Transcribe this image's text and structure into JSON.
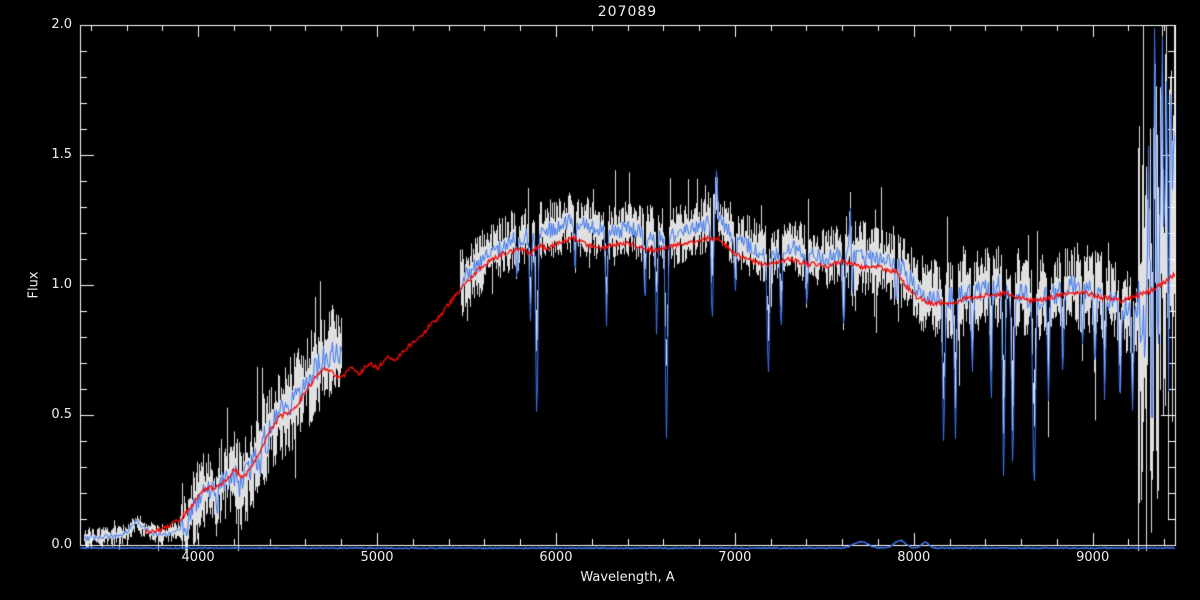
{
  "chart_data": {
    "type": "line",
    "title": "207089",
    "xlabel": "Wavelength, A",
    "ylabel": "Flux",
    "xlim": [
      3340,
      9460
    ],
    "ylim": [
      0.0,
      2.0
    ],
    "grid": false,
    "legend": "none",
    "background": "#000000",
    "axis_color": "#ffffff",
    "text_color": "#efefef",
    "x_ticks": [
      {
        "value": 4000,
        "label": "4000"
      },
      {
        "value": 5000,
        "label": "5000"
      },
      {
        "value": 6000,
        "label": "6000"
      },
      {
        "value": 7000,
        "label": "7000"
      },
      {
        "value": 8000,
        "label": "8000"
      },
      {
        "value": 9000,
        "label": "9000"
      }
    ],
    "y_ticks": [
      {
        "value": 0.0,
        "label": "0.0"
      },
      {
        "value": 0.5,
        "label": "0.5"
      },
      {
        "value": 1.0,
        "label": "1.0"
      },
      {
        "value": 1.5,
        "label": "1.5"
      },
      {
        "value": 2.0,
        "label": "2.0"
      }
    ],
    "series": [
      {
        "name": "observed-spectrum-raw",
        "color": "#ffffff",
        "style": "noisy-band"
      },
      {
        "name": "observed-spectrum-overlay",
        "color": "#3a76f0",
        "style": "noisy-line"
      },
      {
        "name": "model-fit",
        "color": "#f20c0c",
        "style": "smooth-line"
      },
      {
        "name": "zero-baseline",
        "color": "#3a76f0",
        "style": "flat-line"
      }
    ],
    "segments": [
      [
        3360,
        4800
      ],
      [
        5460,
        9460
      ]
    ],
    "continuum": [
      [
        3360,
        0.025
      ],
      [
        3450,
        0.03
      ],
      [
        3550,
        0.035
      ],
      [
        3600,
        0.05
      ],
      [
        3650,
        0.09
      ],
      [
        3700,
        0.06
      ],
      [
        3750,
        0.045
      ],
      [
        3800,
        0.04
      ],
      [
        3850,
        0.05
      ],
      [
        3900,
        0.06
      ],
      [
        3930,
        0.09
      ],
      [
        3960,
        0.13
      ],
      [
        4000,
        0.18
      ],
      [
        4040,
        0.22
      ],
      [
        4080,
        0.21
      ],
      [
        4120,
        0.23
      ],
      [
        4160,
        0.26
      ],
      [
        4200,
        0.27
      ],
      [
        4240,
        0.24
      ],
      [
        4280,
        0.28
      ],
      [
        4320,
        0.33
      ],
      [
        4360,
        0.4
      ],
      [
        4400,
        0.46
      ],
      [
        4440,
        0.5
      ],
      [
        4480,
        0.52
      ],
      [
        4520,
        0.54
      ],
      [
        4560,
        0.57
      ],
      [
        4600,
        0.62
      ],
      [
        4640,
        0.66
      ],
      [
        4680,
        0.7
      ],
      [
        4720,
        0.73
      ],
      [
        4760,
        0.74
      ],
      [
        4800,
        0.72
      ],
      [
        5460,
        1.0
      ],
      [
        5500,
        1.04
      ],
      [
        5550,
        1.07
      ],
      [
        5600,
        1.1
      ],
      [
        5650,
        1.13
      ],
      [
        5700,
        1.15
      ],
      [
        5750,
        1.17
      ],
      [
        5800,
        1.18
      ],
      [
        5850,
        1.19
      ],
      [
        5900,
        1.2
      ],
      [
        5950,
        1.21
      ],
      [
        6000,
        1.22
      ],
      [
        6050,
        1.24
      ],
      [
        6100,
        1.25
      ],
      [
        6150,
        1.23
      ],
      [
        6200,
        1.22
      ],
      [
        6250,
        1.21
      ],
      [
        6300,
        1.2
      ],
      [
        6350,
        1.21
      ],
      [
        6400,
        1.22
      ],
      [
        6450,
        1.21
      ],
      [
        6500,
        1.2
      ],
      [
        6550,
        1.19
      ],
      [
        6600,
        1.18
      ],
      [
        6650,
        1.19
      ],
      [
        6700,
        1.2
      ],
      [
        6750,
        1.21
      ],
      [
        6800,
        1.22
      ],
      [
        6850,
        1.24
      ],
      [
        6900,
        1.26
      ],
      [
        6950,
        1.22
      ],
      [
        7000,
        1.18
      ],
      [
        7050,
        1.16
      ],
      [
        7100,
        1.14
      ],
      [
        7150,
        1.13
      ],
      [
        7200,
        1.12
      ],
      [
        7250,
        1.13
      ],
      [
        7300,
        1.15
      ],
      [
        7350,
        1.13
      ],
      [
        7400,
        1.12
      ],
      [
        7450,
        1.11
      ],
      [
        7500,
        1.1
      ],
      [
        7550,
        1.11
      ],
      [
        7600,
        1.12
      ],
      [
        7650,
        1.11
      ],
      [
        7700,
        1.1
      ],
      [
        7750,
        1.1
      ],
      [
        7800,
        1.1
      ],
      [
        7850,
        1.09
      ],
      [
        7900,
        1.08
      ],
      [
        7950,
        1.05
      ],
      [
        8000,
        1.0
      ],
      [
        8050,
        0.97
      ],
      [
        8100,
        0.95
      ],
      [
        8150,
        0.95
      ],
      [
        8200,
        0.95
      ],
      [
        8250,
        0.96
      ],
      [
        8300,
        0.97
      ],
      [
        8350,
        0.98
      ],
      [
        8400,
        0.98
      ],
      [
        8450,
        0.99
      ],
      [
        8500,
        1.0
      ],
      [
        8550,
        0.98
      ],
      [
        8600,
        0.97
      ],
      [
        8650,
        0.95
      ],
      [
        8700,
        0.95
      ],
      [
        8750,
        0.96
      ],
      [
        8800,
        0.97
      ],
      [
        8850,
        0.99
      ],
      [
        8900,
        1.0
      ],
      [
        8950,
        0.99
      ],
      [
        9000,
        0.98
      ],
      [
        9050,
        0.96
      ],
      [
        9100,
        0.94
      ],
      [
        9150,
        0.92
      ],
      [
        9200,
        0.9
      ],
      [
        9250,
        0.87
      ],
      [
        9300,
        0.85
      ],
      [
        9350,
        0.9
      ],
      [
        9400,
        0.95
      ],
      [
        9440,
        1.0
      ],
      [
        9460,
        1.05
      ]
    ],
    "model_points": [
      [
        3700,
        0.05
      ],
      [
        3750,
        0.055
      ],
      [
        3800,
        0.06
      ],
      [
        3850,
        0.08
      ],
      [
        3900,
        0.1
      ],
      [
        3950,
        0.14
      ],
      [
        4000,
        0.19
      ],
      [
        4050,
        0.22
      ],
      [
        4100,
        0.22
      ],
      [
        4150,
        0.25
      ],
      [
        4200,
        0.29
      ],
      [
        4250,
        0.26
      ],
      [
        4300,
        0.3
      ],
      [
        4350,
        0.37
      ],
      [
        4400,
        0.44
      ],
      [
        4450,
        0.49
      ],
      [
        4500,
        0.51
      ],
      [
        4550,
        0.54
      ],
      [
        4600,
        0.59
      ],
      [
        4650,
        0.64
      ],
      [
        4700,
        0.68
      ],
      [
        4750,
        0.66
      ],
      [
        4800,
        0.64
      ],
      [
        4850,
        0.68
      ],
      [
        4900,
        0.66
      ],
      [
        4950,
        0.7
      ],
      [
        5000,
        0.68
      ],
      [
        5050,
        0.72
      ],
      [
        5100,
        0.71
      ],
      [
        5150,
        0.75
      ],
      [
        5200,
        0.78
      ],
      [
        5250,
        0.81
      ],
      [
        5300,
        0.85
      ],
      [
        5350,
        0.88
      ],
      [
        5400,
        0.93
      ],
      [
        5450,
        0.97
      ],
      [
        5500,
        1.01
      ],
      [
        5550,
        1.05
      ],
      [
        5600,
        1.08
      ],
      [
        5650,
        1.1
      ],
      [
        5700,
        1.12
      ],
      [
        5750,
        1.13
      ],
      [
        5800,
        1.14
      ],
      [
        5850,
        1.12
      ],
      [
        5900,
        1.15
      ],
      [
        5950,
        1.14
      ],
      [
        6000,
        1.16
      ],
      [
        6050,
        1.17
      ],
      [
        6100,
        1.18
      ],
      [
        6150,
        1.16
      ],
      [
        6200,
        1.15
      ],
      [
        6250,
        1.14
      ],
      [
        6300,
        1.15
      ],
      [
        6350,
        1.16
      ],
      [
        6400,
        1.16
      ],
      [
        6450,
        1.15
      ],
      [
        6500,
        1.14
      ],
      [
        6550,
        1.13
      ],
      [
        6600,
        1.14
      ],
      [
        6650,
        1.15
      ],
      [
        6700,
        1.16
      ],
      [
        6750,
        1.16
      ],
      [
        6800,
        1.17
      ],
      [
        6850,
        1.18
      ],
      [
        6900,
        1.18
      ],
      [
        6950,
        1.15
      ],
      [
        7000,
        1.12
      ],
      [
        7050,
        1.1
      ],
      [
        7100,
        1.09
      ],
      [
        7150,
        1.08
      ],
      [
        7200,
        1.08
      ],
      [
        7250,
        1.09
      ],
      [
        7300,
        1.1
      ],
      [
        7350,
        1.09
      ],
      [
        7400,
        1.08
      ],
      [
        7450,
        1.08
      ],
      [
        7500,
        1.07
      ],
      [
        7550,
        1.08
      ],
      [
        7600,
        1.09
      ],
      [
        7650,
        1.08
      ],
      [
        7700,
        1.07
      ],
      [
        7750,
        1.07
      ],
      [
        7800,
        1.07
      ],
      [
        7850,
        1.06
      ],
      [
        7900,
        1.05
      ],
      [
        7950,
        1.0
      ],
      [
        8000,
        0.96
      ],
      [
        8050,
        0.94
      ],
      [
        8100,
        0.93
      ],
      [
        8150,
        0.93
      ],
      [
        8200,
        0.93
      ],
      [
        8250,
        0.94
      ],
      [
        8300,
        0.95
      ],
      [
        8350,
        0.95
      ],
      [
        8400,
        0.96
      ],
      [
        8450,
        0.96
      ],
      [
        8500,
        0.97
      ],
      [
        8550,
        0.96
      ],
      [
        8600,
        0.95
      ],
      [
        8650,
        0.94
      ],
      [
        8700,
        0.94
      ],
      [
        8750,
        0.95
      ],
      [
        8800,
        0.96
      ],
      [
        8850,
        0.97
      ],
      [
        8900,
        0.97
      ],
      [
        8950,
        0.97
      ],
      [
        9000,
        0.96
      ],
      [
        9050,
        0.95
      ],
      [
        9100,
        0.95
      ],
      [
        9150,
        0.94
      ],
      [
        9200,
        0.95
      ],
      [
        9250,
        0.96
      ],
      [
        9300,
        0.97
      ],
      [
        9350,
        0.99
      ],
      [
        9400,
        1.01
      ],
      [
        9430,
        1.03
      ],
      [
        9460,
        1.04
      ]
    ],
    "absorption_features": [
      [
        3935,
        0.06,
        5
      ],
      [
        4102,
        0.09,
        6
      ],
      [
        4227,
        0.06,
        5
      ],
      [
        4341,
        0.1,
        6
      ],
      [
        4383,
        0.08,
        5
      ],
      [
        5780,
        0.15,
        5
      ],
      [
        5855,
        0.35,
        5
      ],
      [
        5890,
        0.72,
        6
      ],
      [
        6105,
        0.2,
        5
      ],
      [
        6280,
        0.38,
        5
      ],
      [
        6495,
        0.25,
        5
      ],
      [
        6560,
        0.35,
        5
      ],
      [
        6615,
        0.8,
        6
      ],
      [
        6870,
        0.38,
        6
      ],
      [
        7000,
        0.2,
        5
      ],
      [
        7185,
        0.45,
        7
      ],
      [
        7255,
        0.32,
        5
      ],
      [
        7400,
        0.2,
        5
      ],
      [
        7605,
        0.3,
        6
      ],
      [
        7650,
        0.25,
        5
      ],
      [
        7900,
        0.15,
        5
      ],
      [
        8165,
        0.55,
        6
      ],
      [
        8230,
        0.58,
        6
      ],
      [
        8325,
        0.3,
        5
      ],
      [
        8430,
        0.4,
        5
      ],
      [
        8500,
        0.75,
        6
      ],
      [
        8550,
        0.7,
        6
      ],
      [
        8670,
        0.75,
        7
      ],
      [
        8750,
        0.45,
        5
      ],
      [
        8830,
        0.3,
        5
      ],
      [
        8940,
        0.25,
        5
      ],
      [
        9010,
        0.32,
        5
      ],
      [
        9065,
        0.38,
        5
      ],
      [
        9150,
        0.4,
        6
      ],
      [
        9220,
        0.35,
        5
      ],
      [
        9330,
        0.5,
        4
      ],
      [
        9420,
        0.45,
        4
      ]
    ],
    "spike_features": [
      [
        6895,
        0.18,
        5
      ],
      [
        7645,
        0.3,
        5
      ],
      [
        9310,
        0.55,
        5
      ],
      [
        9345,
        1.3,
        5
      ],
      [
        9385,
        1.05,
        6
      ],
      [
        9410,
        0.9,
        5
      ],
      [
        9435,
        0.95,
        5
      ],
      [
        9455,
        0.7,
        5
      ]
    ],
    "noise_profile": [
      [
        3340,
        3900,
        0.012
      ],
      [
        3900,
        4200,
        0.045
      ],
      [
        4200,
        4800,
        0.055
      ],
      [
        5460,
        5600,
        0.04
      ],
      [
        5600,
        7600,
        0.035
      ],
      [
        7600,
        8100,
        0.045
      ],
      [
        8100,
        9250,
        0.05
      ],
      [
        9250,
        9460,
        0.22
      ]
    ],
    "baseline": {
      "flux": -0.012,
      "range": [
        3340,
        9460
      ],
      "bumps": [
        [
          7700,
          0.025,
          40
        ],
        [
          7920,
          0.03,
          30
        ],
        [
          8060,
          0.022,
          22
        ]
      ]
    }
  }
}
